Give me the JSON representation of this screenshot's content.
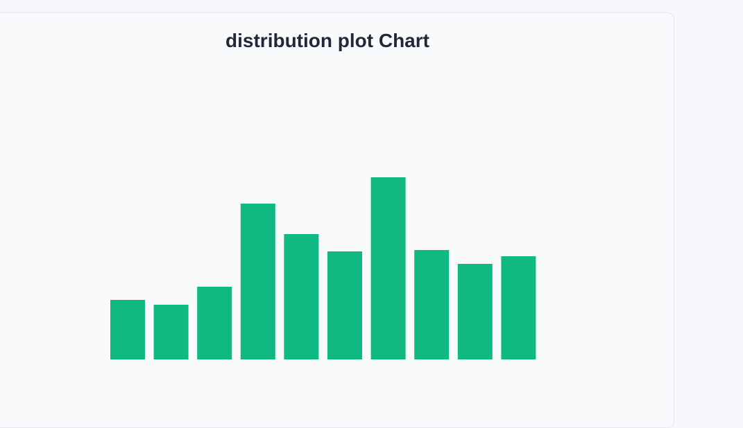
{
  "chart_data": {
    "type": "bar",
    "title": "distribution plot Chart",
    "values": [
      43,
      39.5,
      52.5,
      112.5,
      90.5,
      78,
      131.5,
      79,
      69,
      74.5
    ],
    "ylim": [
      0,
      180
    ],
    "grid": false,
    "color": "#10b981"
  }
}
